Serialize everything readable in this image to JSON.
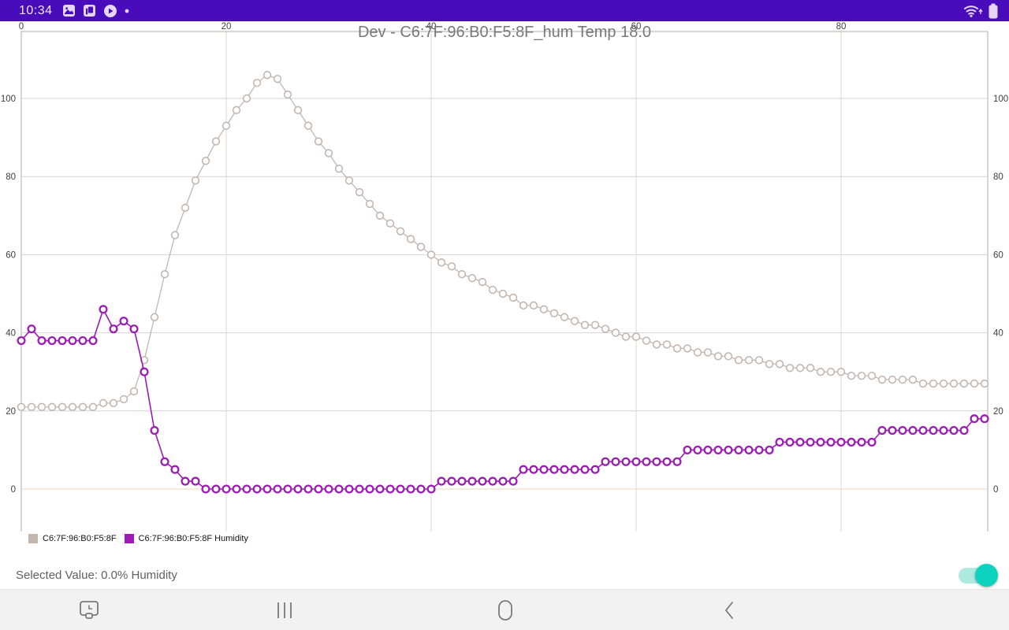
{
  "status_bar": {
    "time": "10:34",
    "left_icons": [
      "gallery-icon",
      "notes-app-icon",
      "play-icon",
      "notification-dot"
    ],
    "right_icons": [
      "wifi-icon",
      "battery-icon"
    ],
    "background_color": "#480CBB",
    "foreground_color": "#E4D6FA"
  },
  "chart_data": {
    "type": "line",
    "title": "Dev - C6:7F:96:B0:F5:8F_hum Temp 18.0",
    "xlabel": "",
    "ylabel": "",
    "x_ticks": [
      0,
      20,
      40,
      60,
      80
    ],
    "y_ticks": [
      0,
      20,
      40,
      60,
      80,
      100
    ],
    "xlim": [
      0,
      94.3
    ],
    "ylim": [
      -11,
      117
    ],
    "grid": true,
    "legend_position": "bottom-left",
    "x_start": 0,
    "x_step": 1,
    "colors": {
      "grid_h": "#d4d4d4",
      "grid_v": "#dcd5cf",
      "zero_line": "#eed9bd",
      "border": "#b1adaa",
      "tick_label": "#3f3f3f"
    },
    "series": [
      {
        "name": "C6:7F:96:B0:F5:8F",
        "color": "#C3B7AF",
        "marker": "circle-open",
        "values": [
          21,
          21,
          21,
          21,
          21,
          21,
          21,
          21,
          22,
          22,
          23,
          25,
          33,
          44,
          55,
          65,
          72,
          79,
          84,
          89,
          93,
          97,
          100,
          104,
          106,
          105,
          101,
          97,
          93,
          89,
          86,
          82,
          79,
          76,
          73,
          70,
          68,
          66,
          64,
          62,
          60,
          58,
          57,
          55,
          54,
          53,
          51,
          50,
          49,
          47,
          47,
          46,
          45,
          44,
          43,
          42,
          42,
          41,
          40,
          39,
          39,
          38,
          37,
          37,
          36,
          36,
          35,
          35,
          34,
          34,
          33,
          33,
          33,
          32,
          32,
          31,
          31,
          31,
          30,
          30,
          30,
          29,
          29,
          29,
          28,
          28,
          28,
          28,
          27,
          27,
          27,
          27,
          27,
          27,
          27
        ]
      },
      {
        "name": "C6:7F:96:B0:F5:8F Humidity",
        "color": "#9B1DB3",
        "marker": "circle-open",
        "values": [
          38,
          41,
          38,
          38,
          38,
          38,
          38,
          38,
          46,
          41,
          43,
          41,
          30,
          15,
          7,
          5,
          2,
          2,
          0,
          0,
          0,
          0,
          0,
          0,
          0,
          0,
          0,
          0,
          0,
          0,
          0,
          0,
          0,
          0,
          0,
          0,
          0,
          0,
          0,
          0,
          0,
          2,
          2,
          2,
          2,
          2,
          2,
          2,
          2,
          5,
          5,
          5,
          5,
          5,
          5,
          5,
          5,
          7,
          7,
          7,
          7,
          7,
          7,
          7,
          7,
          10,
          10,
          10,
          10,
          10,
          10,
          10,
          10,
          10,
          12,
          12,
          12,
          12,
          12,
          12,
          12,
          12,
          12,
          12,
          15,
          15,
          15,
          15,
          15,
          15,
          15,
          15,
          15,
          18,
          18
        ]
      }
    ]
  },
  "legend": {
    "items": [
      {
        "label": "C6:7F:96:B0:F5:8F",
        "color": "#C3B7AF"
      },
      {
        "label": "C6:7F:96:B0:F5:8F Humidity",
        "color": "#9B1DB3"
      }
    ]
  },
  "footer": {
    "selected_value": "Selected Value: 0.0% Humidity",
    "toggle": {
      "state": "on",
      "thumb_color": "#0BD3BD",
      "track_color": "#ADEBE0"
    }
  },
  "nav_bar": {
    "icons": [
      "screen-capture-icon",
      "recents-icon",
      "home-icon",
      "back-icon"
    ],
    "background_color": "#F2F2F2",
    "icon_color": "#7a7a7a"
  }
}
